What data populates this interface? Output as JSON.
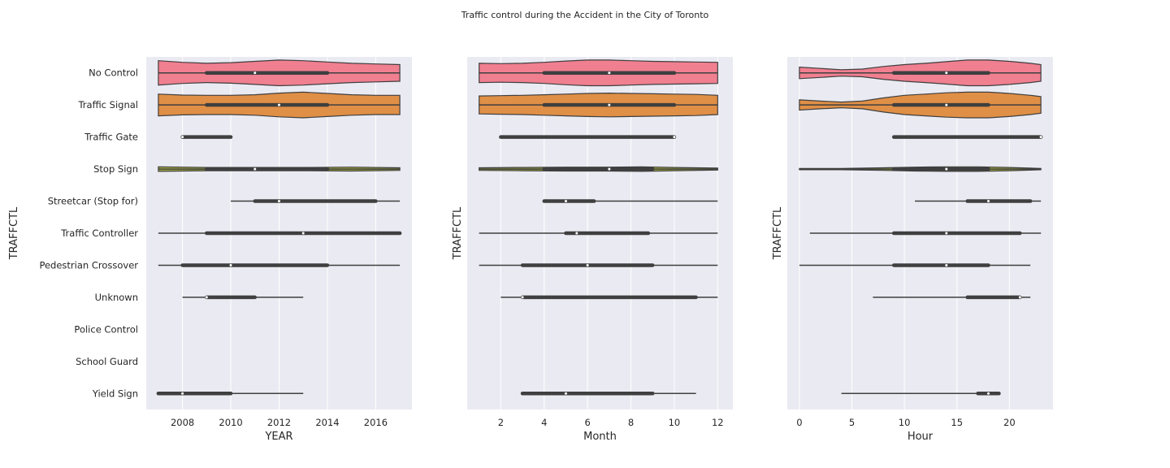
{
  "figure": {
    "title": "Traffic control during the Accident in the City of Toronto"
  },
  "colors": {
    "background": "#eaeaf2",
    "grid": "#ffffff",
    "box": "#3f3f3f",
    "palette": [
      "#f07f90",
      "#e08f46",
      "#c9a53f",
      "#a8b040",
      "#7fb83f",
      "#3fb77e",
      "#3fb0a6",
      "#3facb9",
      "#4aa3d6",
      "#8f98e6",
      "#d07fe0"
    ]
  },
  "chart_data": [
    {
      "type": "violin",
      "title": "",
      "xlabel": "YEAR",
      "ylabel": "TRAFFCTL",
      "xlim": [
        2006.5,
        2017.5
      ],
      "xticks": [
        2008,
        2010,
        2012,
        2014,
        2016
      ],
      "categories": [
        "No Control",
        "Traffic Signal",
        "Traffic Gate",
        "Stop Sign",
        "Streetcar (Stop for)",
        "Traffic Controller",
        "Pedestrian Crossover",
        "Unknown",
        "Police Control",
        "School Guard",
        "Yield Sign"
      ],
      "series": [
        {
          "category": "No Control",
          "min": 2007,
          "q1": 2009,
          "median": 2011,
          "q3": 2014,
          "max": 2017,
          "density": {
            "x": [
              2007,
              2008,
              2009,
              2010,
              2011,
              2012,
              2013,
              2014,
              2015,
              2016,
              2017
            ],
            "w": [
              0.38,
              0.33,
              0.3,
              0.32,
              0.36,
              0.4,
              0.38,
              0.34,
              0.3,
              0.28,
              0.26
            ]
          }
        },
        {
          "category": "Traffic Signal",
          "min": 2007,
          "q1": 2009,
          "median": 2012,
          "q3": 2014,
          "max": 2017,
          "density": {
            "x": [
              2007,
              2008,
              2009,
              2010,
              2011,
              2012,
              2013,
              2014,
              2015,
              2016,
              2017
            ],
            "w": [
              0.34,
              0.31,
              0.3,
              0.3,
              0.32,
              0.37,
              0.4,
              0.36,
              0.32,
              0.3,
              0.3
            ]
          }
        },
        {
          "category": "Traffic Gate",
          "min": 2008,
          "q1": 2008,
          "median": 2008,
          "q3": 2010,
          "max": 2010,
          "density": null
        },
        {
          "category": "Stop Sign",
          "min": 2007,
          "q1": 2009,
          "median": 2011,
          "q3": 2014,
          "max": 2017,
          "density": {
            "x": [
              2007,
              2009,
              2011,
              2013,
              2015,
              2017
            ],
            "w": [
              0.07,
              0.05,
              0.05,
              0.05,
              0.06,
              0.04
            ]
          }
        },
        {
          "category": "Streetcar (Stop for)",
          "min": 2010,
          "q1": 2011,
          "median": 2012,
          "q3": 2016,
          "max": 2017,
          "density": null
        },
        {
          "category": "Traffic Controller",
          "min": 2007,
          "q1": 2009,
          "median": 2013,
          "q3": 2017,
          "max": 2017,
          "density": null
        },
        {
          "category": "Pedestrian Crossover",
          "min": 2007,
          "q1": 2008,
          "median": 2010,
          "q3": 2014,
          "max": 2017,
          "density": null
        },
        {
          "category": "Unknown",
          "min": 2008,
          "q1": 2009,
          "median": 2009,
          "q3": 2011,
          "max": 2013,
          "density": null
        },
        {
          "category": "Police Control",
          "min": null,
          "q1": null,
          "median": null,
          "q3": null,
          "max": null,
          "density": null
        },
        {
          "category": "School Guard",
          "min": null,
          "q1": null,
          "median": null,
          "q3": null,
          "max": null,
          "density": null
        },
        {
          "category": "Yield Sign",
          "min": 2007,
          "q1": 2007,
          "median": 2008,
          "q3": 2010,
          "max": 2013,
          "density": null
        }
      ]
    },
    {
      "type": "violin",
      "title": "",
      "xlabel": "Month",
      "ylabel": "TRAFFCTL",
      "xlim": [
        0.45,
        12.7
      ],
      "xticks": [
        2,
        4,
        6,
        8,
        10,
        12
      ],
      "categories": [
        "No Control",
        "Traffic Signal",
        "Traffic Gate",
        "Stop Sign",
        "Streetcar (Stop for)",
        "Traffic Controller",
        "Pedestrian Crossover",
        "Unknown",
        "Police Control",
        "School Guard",
        "Yield Sign"
      ],
      "series": [
        {
          "category": "No Control",
          "min": 1,
          "q1": 4,
          "median": 7,
          "q3": 10,
          "max": 12,
          "density": {
            "x": [
              1,
              2,
              3,
              4,
              5,
              6,
              7,
              8,
              9,
              10,
              11,
              12
            ],
            "w": [
              0.3,
              0.29,
              0.3,
              0.33,
              0.37,
              0.4,
              0.4,
              0.38,
              0.36,
              0.35,
              0.34,
              0.33
            ]
          }
        },
        {
          "category": "Traffic Signal",
          "min": 1,
          "q1": 4,
          "median": 7,
          "q3": 10,
          "max": 12,
          "density": {
            "x": [
              1,
              2,
              3,
              4,
              5,
              6,
              7,
              8,
              9,
              10,
              11,
              12
            ],
            "w": [
              0.28,
              0.29,
              0.3,
              0.32,
              0.34,
              0.36,
              0.37,
              0.36,
              0.35,
              0.34,
              0.33,
              0.3
            ]
          }
        },
        {
          "category": "Traffic Gate",
          "min": 2,
          "q1": 2,
          "median": 10,
          "q3": 10,
          "max": 10,
          "density": null
        },
        {
          "category": "Stop Sign",
          "min": 1,
          "q1": 4,
          "median": 7,
          "q3": 9,
          "max": 12,
          "density": {
            "x": [
              1,
              3,
              5,
              7,
              8.5,
              10,
              12
            ],
            "w": [
              0.04,
              0.05,
              0.06,
              0.06,
              0.07,
              0.05,
              0.03
            ]
          }
        },
        {
          "category": "Streetcar (Stop for)",
          "min": 4,
          "q1": 4,
          "median": 5,
          "q3": 6.3,
          "max": 12,
          "density": null
        },
        {
          "category": "Traffic Controller",
          "min": 1,
          "q1": 5,
          "median": 5.5,
          "q3": 8.8,
          "max": 12,
          "density": null
        },
        {
          "category": "Pedestrian Crossover",
          "min": 1,
          "q1": 3,
          "median": 6,
          "q3": 9,
          "max": 12,
          "density": null
        },
        {
          "category": "Unknown",
          "min": 2,
          "q1": 3,
          "median": 3,
          "q3": 11,
          "max": 12,
          "density": null
        },
        {
          "category": "Police Control",
          "min": null,
          "q1": null,
          "median": null,
          "q3": null,
          "max": null,
          "density": null
        },
        {
          "category": "School Guard",
          "min": null,
          "q1": null,
          "median": null,
          "q3": null,
          "max": null,
          "density": null
        },
        {
          "category": "Yield Sign",
          "min": 3,
          "q1": 3,
          "median": 5,
          "q3": 9,
          "max": 11,
          "density": null
        }
      ]
    },
    {
      "type": "violin",
      "title": "",
      "xlabel": "Hour",
      "ylabel": "TRAFFCTL",
      "xlim": [
        -1.15,
        24.15
      ],
      "xticks": [
        0,
        5,
        10,
        15,
        20
      ],
      "categories": [
        "No Control",
        "Traffic Signal",
        "Traffic Gate",
        "Stop Sign",
        "Streetcar (Stop for)",
        "Traffic Controller",
        "Pedestrian Crossover",
        "Unknown",
        "Police Control",
        "School Guard",
        "Yield Sign"
      ],
      "series": [
        {
          "category": "No Control",
          "min": 0,
          "q1": 9,
          "median": 14,
          "q3": 18,
          "max": 23,
          "density": {
            "x": [
              0,
              2,
              4,
              6,
              8,
              10,
              12,
              14,
              16,
              18,
              20,
              22,
              23
            ],
            "w": [
              0.18,
              0.14,
              0.1,
              0.12,
              0.2,
              0.26,
              0.3,
              0.35,
              0.4,
              0.4,
              0.36,
              0.3,
              0.26
            ]
          }
        },
        {
          "category": "Traffic Signal",
          "min": 0,
          "q1": 9,
          "median": 14,
          "q3": 18,
          "max": 23,
          "density": {
            "x": [
              0,
              2,
              4,
              6,
              8,
              10,
              12,
              14,
              16,
              18,
              20,
              22,
              23
            ],
            "w": [
              0.16,
              0.12,
              0.09,
              0.12,
              0.22,
              0.3,
              0.34,
              0.38,
              0.4,
              0.4,
              0.36,
              0.3,
              0.26
            ]
          }
        },
        {
          "category": "Traffic Gate",
          "min": 9,
          "q1": 9,
          "median": 23,
          "q3": 23,
          "max": 23,
          "density": null
        },
        {
          "category": "Stop Sign",
          "min": 0,
          "q1": 9,
          "median": 14,
          "q3": 18,
          "max": 23,
          "density": {
            "x": [
              0,
              4,
              8,
              11,
              14,
              17,
              20,
              23
            ],
            "w": [
              0.02,
              0.02,
              0.04,
              0.06,
              0.07,
              0.07,
              0.05,
              0.02
            ]
          }
        },
        {
          "category": "Streetcar (Stop for)",
          "min": 11,
          "q1": 16,
          "median": 18,
          "q3": 22,
          "max": 23,
          "density": null
        },
        {
          "category": "Traffic Controller",
          "min": 1,
          "q1": 9,
          "median": 14,
          "q3": 21,
          "max": 23,
          "density": null
        },
        {
          "category": "Pedestrian Crossover",
          "min": 0,
          "q1": 9,
          "median": 14,
          "q3": 18,
          "max": 22,
          "density": null
        },
        {
          "category": "Unknown",
          "min": 7,
          "q1": 16,
          "median": 21,
          "q3": 21,
          "max": 22,
          "density": null
        },
        {
          "category": "Police Control",
          "min": null,
          "q1": null,
          "median": null,
          "q3": null,
          "max": null,
          "density": null
        },
        {
          "category": "School Guard",
          "min": null,
          "q1": null,
          "median": null,
          "q3": null,
          "max": null,
          "density": null
        },
        {
          "category": "Yield Sign",
          "min": 4,
          "q1": 17,
          "median": 18,
          "q3": 19,
          "max": 19,
          "density": null
        }
      ]
    }
  ]
}
